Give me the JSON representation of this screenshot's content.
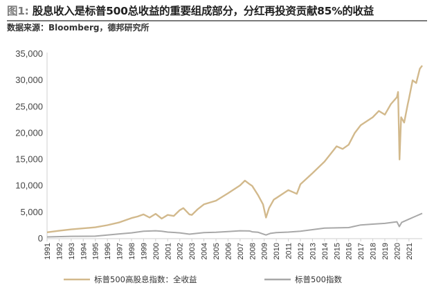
{
  "header": {
    "fig_label": "图1:",
    "title": "股息收入是标普500总收益的重要组成部分，分红再投资贡献85%的收益",
    "source": "数据来源：Bloomberg，德邦研究所"
  },
  "colors": {
    "total_return": "#d2b98c",
    "price_index": "#a8a8a8",
    "rule": "#7a7a7a",
    "axis": "#cfcfcf"
  },
  "chart_data": {
    "type": "line",
    "title": "",
    "xlabel": "",
    "ylabel": "",
    "ylim": [
      0,
      35000
    ],
    "xlim": [
      1991,
      2022.1
    ],
    "grid": false,
    "legend_position": "bottom",
    "yticks": [
      "0",
      "5,000",
      "10,000",
      "15,000",
      "20,000",
      "25,000",
      "30,000",
      "35,000"
    ],
    "ytick_values": [
      0,
      5000,
      10000,
      15000,
      20000,
      25000,
      30000,
      35000
    ],
    "xticks": [
      "1991",
      "1992",
      "1993",
      "1994",
      "1995",
      "1996",
      "1997",
      "1998",
      "1999",
      "2000",
      "2001",
      "2002",
      "2003",
      "2004",
      "2005",
      "2006",
      "2007",
      "2008",
      "2009",
      "2010",
      "2011",
      "2012",
      "2013",
      "2014",
      "2015",
      "2016",
      "2017",
      "2018",
      "2019",
      "2020",
      "2021"
    ],
    "series": [
      {
        "name": "标普500高股息指数：全收益",
        "color": "#d2b98c",
        "x": [
          1991,
          1991.5,
          1992,
          1993,
          1994,
          1995,
          1996,
          1997,
          1998,
          1998.5,
          1999,
          1999.5,
          2000,
          2000.5,
          2001,
          2001.5,
          2002,
          2002.3,
          2002.8,
          2003,
          2003.5,
          2004,
          2005,
          2006,
          2007,
          2007.4,
          2007.8,
          2008,
          2008.5,
          2008.9,
          2009.15,
          2009.4,
          2009.8,
          2010,
          2011,
          2011.7,
          2012,
          2013,
          2014,
          2015,
          2015.5,
          2016,
          2016.5,
          2017,
          2018,
          2018.5,
          2019,
          2019.5,
          2020,
          2020.1,
          2020.22,
          2020.35,
          2020.6,
          2020.9,
          2021,
          2021.3,
          2021.6,
          2021.9,
          2022.1
        ],
        "y": [
          1200,
          1350,
          1500,
          1750,
          1950,
          2150,
          2550,
          3100,
          3900,
          4200,
          4600,
          4000,
          4700,
          3800,
          4500,
          4300,
          5400,
          5800,
          4600,
          4500,
          5600,
          6500,
          7200,
          8600,
          10100,
          11000,
          10300,
          10000,
          8200,
          6500,
          4000,
          5800,
          7400,
          7700,
          9200,
          8500,
          10300,
          12400,
          14600,
          17500,
          17000,
          17800,
          20000,
          21500,
          23000,
          24200,
          23500,
          25500,
          26800,
          27800,
          15000,
          23000,
          22000,
          25500,
          26500,
          30000,
          29500,
          32200,
          32800
        ]
      },
      {
        "name": "标普500指数",
        "color": "#a8a8a8",
        "x": [
          1991,
          1993,
          1995,
          1997,
          1998,
          1999,
          2000,
          2000.5,
          2001,
          2002,
          2002.8,
          2003,
          2004,
          2005,
          2006,
          2007,
          2007.8,
          2008,
          2008.5,
          2009.15,
          2009.5,
          2010,
          2011,
          2012,
          2013,
          2014,
          2015,
          2016,
          2017,
          2018,
          2019,
          2020,
          2020.2,
          2020.4,
          2021,
          2021.5,
          2022.1
        ],
        "y": [
          330,
          440,
          470,
          900,
          1100,
          1400,
          1500,
          1400,
          1250,
          1100,
          850,
          900,
          1150,
          1200,
          1350,
          1500,
          1450,
          1300,
          1200,
          700,
          1000,
          1150,
          1250,
          1400,
          1700,
          2000,
          2050,
          2100,
          2600,
          2750,
          2900,
          3200,
          2300,
          3100,
          3700,
          4200,
          4800
        ]
      }
    ]
  }
}
